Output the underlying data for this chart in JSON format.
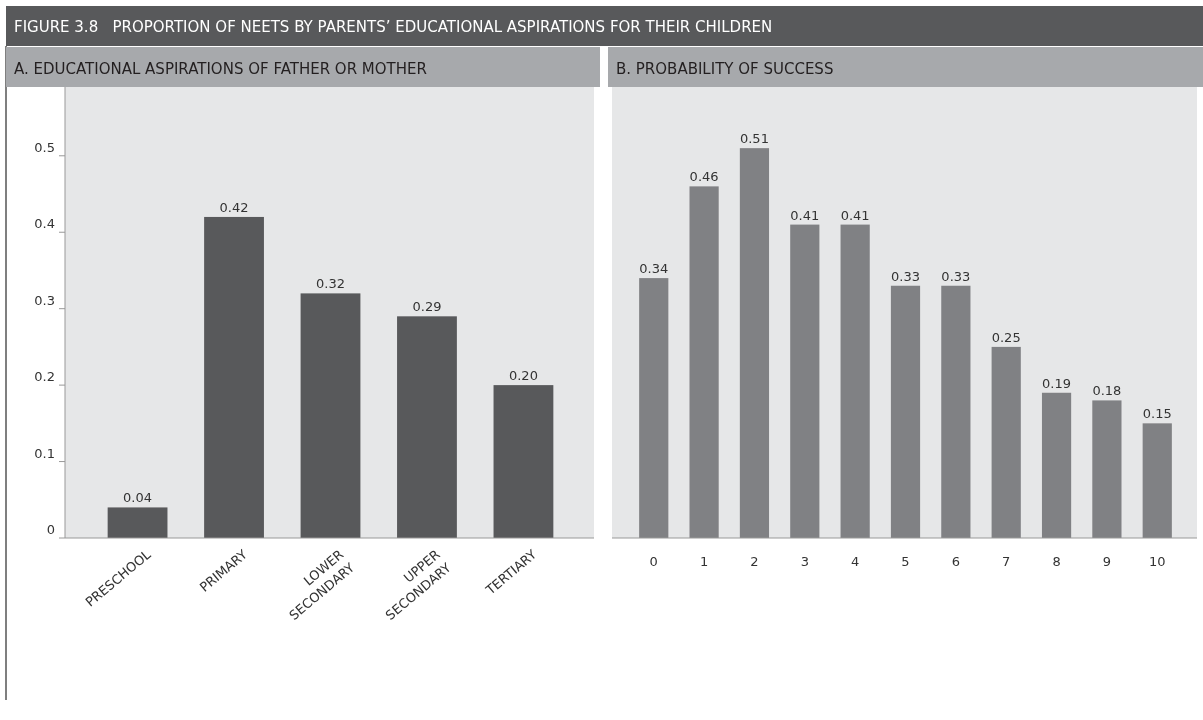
{
  "chart_data": [
    {
      "type": "bar",
      "title": "FIGURE 3.8   PROPORTION OF NEETS BY PARENTS’ EDUCATIONAL ASPIRATIONS FOR THEIR CHILDREN",
      "subtitle": "A.  EDUCATIONAL ASPIRATIONS OF FATHER OR MOTHER",
      "categories": [
        "PRESCHOOL",
        "PRIMARY",
        "LOWER SECONDARY",
        "UPPER SECONDARY",
        "TERTIARY"
      ],
      "values": [
        0.04,
        0.42,
        0.32,
        0.29,
        0.2
      ],
      "color": "#58595b",
      "ylim": [
        0,
        0.59
      ],
      "yticks": [
        0,
        0.1,
        0.2,
        0.3,
        0.4,
        0.5
      ],
      "data_labels": true,
      "value_labels": [
        "0.04",
        "0.42",
        "0.32",
        "0.29",
        "0.20"
      ]
    },
    {
      "type": "bar",
      "subtitle": "B. PROBABILITY OF SUCCESS",
      "categories": [
        "0",
        "1",
        "2",
        "3",
        "4",
        "5",
        "6",
        "7",
        "8",
        "9",
        "10"
      ],
      "values": [
        0.34,
        0.46,
        0.51,
        0.41,
        0.41,
        0.33,
        0.33,
        0.25,
        0.19,
        0.18,
        0.15
      ],
      "color": "#808184",
      "ylim": [
        0,
        0.59
      ],
      "tick_labels": "x",
      "data_labels": true
    }
  ]
}
